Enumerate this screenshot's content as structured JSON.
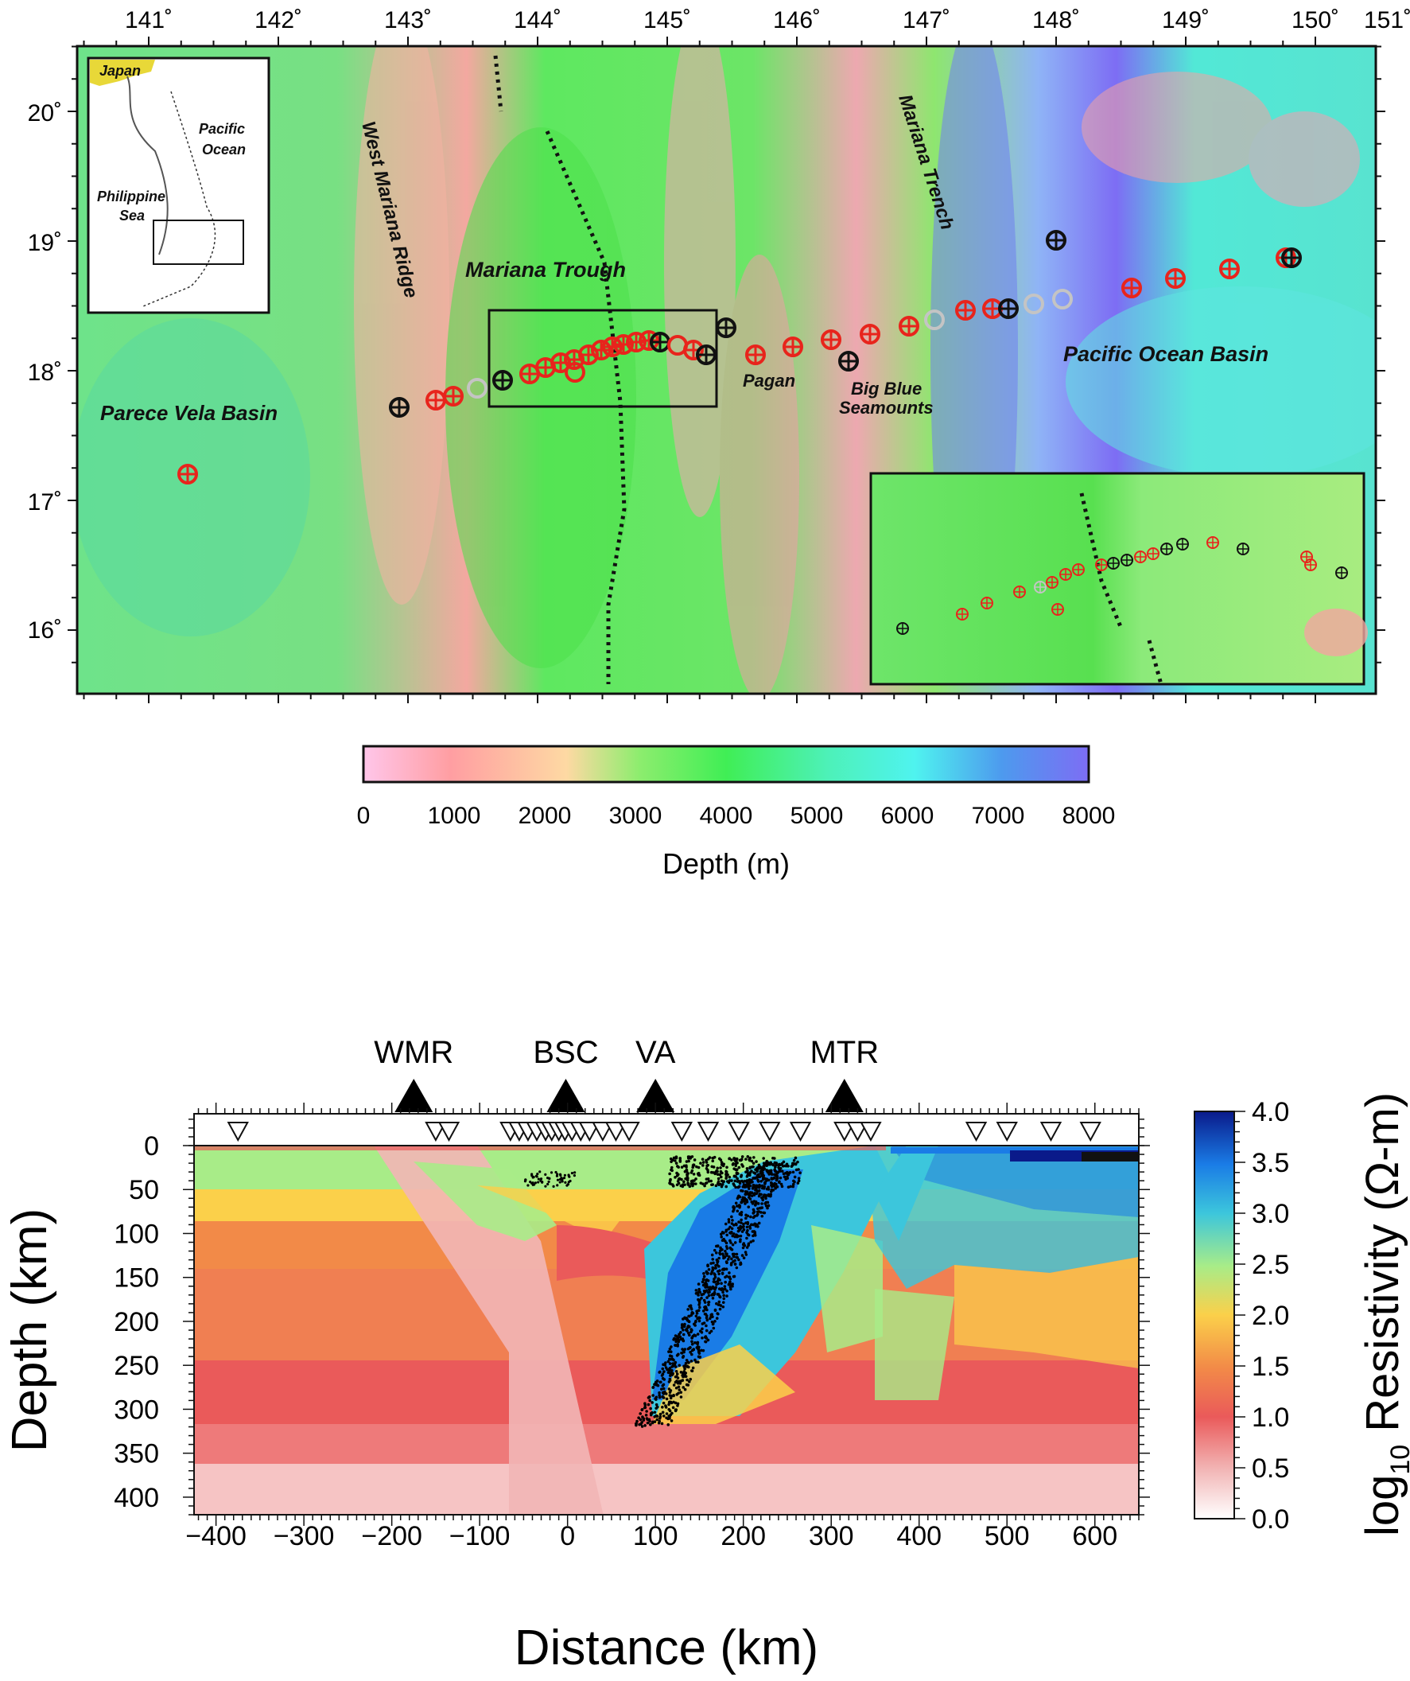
{
  "map": {
    "lon_ticks": [
      "141˚",
      "142˚",
      "143˚",
      "144˚",
      "145˚",
      "146˚",
      "147˚",
      "148˚",
      "149˚",
      "150˚",
      "151˚"
    ],
    "lat_ticks": [
      "20˚",
      "19˚",
      "18˚",
      "17˚",
      "16˚"
    ],
    "lon_range": [
      141,
      151
    ],
    "lat_range": [
      15.5,
      20.5
    ],
    "labels": {
      "west_mariana_ridge": "West Mariana Ridge",
      "mariana_trough": "Mariana Trough",
      "mariana_trench": "Mariana Trench",
      "parece_vela_basin": "Parece Vela Basin",
      "pagan": "Pagan",
      "big_blue": "Big Blue",
      "seamounts": "Seamounts",
      "pacific_ocean_basin": "Pacific Ocean Basin"
    },
    "inset": {
      "japan": "Japan",
      "pacific_l1": "Pacific",
      "pacific_l2": "Ocean",
      "philippine_l1": "Philippine",
      "philippine_l2": "Sea"
    },
    "colors": {
      "station_red": "#e8241c",
      "station_black": "#111111",
      "station_gray": "#c4c4c4"
    }
  },
  "depth_bar": {
    "label": "Depth (m)",
    "ticks": [
      "0",
      "1000",
      "2000",
      "3000",
      "4000",
      "5000",
      "6000",
      "7000",
      "8000"
    ],
    "range": [
      0,
      8000
    ],
    "colors": [
      "#ffc6ea",
      "#ff9ea2",
      "#fed9a3",
      "#8ded6e",
      "#40ee55",
      "#4df1b8",
      "#4ff3ef",
      "#4d9aee",
      "#7d6df4"
    ]
  },
  "chart_data": {
    "type": "heatmap",
    "xlabel": "Distance (km)",
    "ylabel": "Depth (km)",
    "x_ticks": [
      "−400",
      "−300",
      "−200",
      "−100",
      "0",
      "100",
      "200",
      "300",
      "400",
      "500",
      "600"
    ],
    "y_ticks": [
      "0",
      "50",
      "100",
      "150",
      "200",
      "250",
      "300",
      "350",
      "400"
    ],
    "xlim": [
      -425,
      650
    ],
    "ylim": [
      0,
      420
    ],
    "features": [
      {
        "label": "WMR",
        "x": -175
      },
      {
        "label": "BSC",
        "x": -2
      },
      {
        "label": "VA",
        "x": 100
      },
      {
        "label": "MTR",
        "x": 315
      }
    ],
    "stations_x": [
      -375,
      -150,
      -135,
      -65,
      -55,
      -45,
      -35,
      -25,
      -18,
      -10,
      -3,
      5,
      15,
      25,
      40,
      55,
      70,
      130,
      160,
      195,
      230,
      265,
      315,
      330,
      345,
      465,
      500,
      550,
      595
    ],
    "colorbar": {
      "label_main": "log",
      "label_sub": "10",
      "label_rest": " Resistivity (Ω-m)",
      "ticks": [
        "4.0",
        "3.5",
        "3.0",
        "2.5",
        "2.0",
        "1.5",
        "1.0",
        "0.5",
        "0.0"
      ],
      "range": [
        0,
        4
      ],
      "colors": [
        "#ffffff",
        "#f2b6b6",
        "#ea5a5a",
        "#f28a48",
        "#fbd04a",
        "#a8ec88",
        "#3cc6dc",
        "#1a7ce6",
        "#0a1a8a"
      ]
    }
  }
}
